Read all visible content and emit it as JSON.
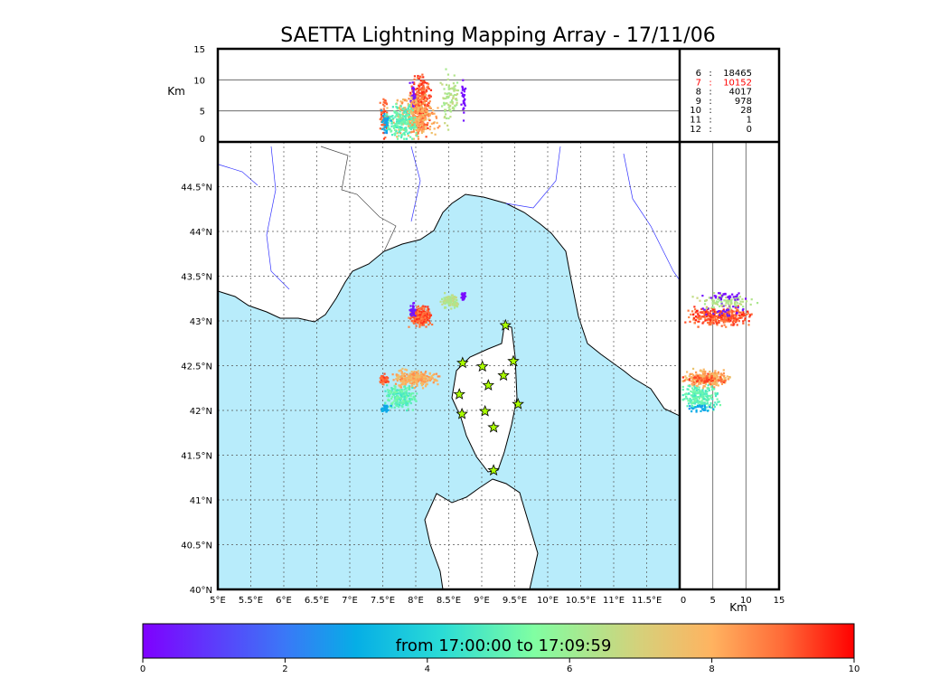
{
  "chart_data": {
    "type": "scatter",
    "title": "SAETTA Lightning Mapping Array - 17/11/06",
    "map": {
      "lon_range": [
        5,
        12
      ],
      "lat_range": [
        40,
        45
      ],
      "lon_ticks": [
        "5°E",
        "5.5°E",
        "6°E",
        "6.5°E",
        "7°E",
        "7.5°E",
        "8°E",
        "8.5°E",
        "9°E",
        "9.5°E",
        "10°E",
        "10.5°E",
        "11°E",
        "11.5°E"
      ],
      "lat_ticks": [
        "40°N",
        "40.5°N",
        "41°N",
        "41.5°N",
        "42°N",
        "42.5°N",
        "43°N",
        "43.5°N",
        "44°N",
        "44.5°N"
      ],
      "sea_color": "#b8ecfb",
      "land_color": "#ffffff"
    },
    "altitude_panel": {
      "ylabel": "Km",
      "yticks": [
        "0",
        "5",
        "10",
        "15"
      ],
      "range": [
        0,
        15
      ]
    },
    "side_panel": {
      "xlabel": "Km",
      "xticks": [
        "0",
        "5",
        "10",
        "15"
      ],
      "range": [
        0,
        15
      ]
    },
    "station_counts": [
      {
        "n": "6",
        "count": "18465",
        "highlight": false
      },
      {
        "n": "7",
        "count": "10152",
        "highlight": true
      },
      {
        "n": "8",
        "count": "4017",
        "highlight": false
      },
      {
        "n": "9",
        "count": "978",
        "highlight": false
      },
      {
        "n": "10",
        "count": "28",
        "highlight": false
      },
      {
        "n": "11",
        "count": "1",
        "highlight": false
      },
      {
        "n": "12",
        "count": "0",
        "highlight": false
      }
    ],
    "highlight_color": "#ff0000",
    "stations": [
      [
        9.36,
        42.95
      ],
      [
        8.71,
        42.53
      ],
      [
        9.01,
        42.49
      ],
      [
        9.48,
        42.55
      ],
      [
        9.1,
        42.28
      ],
      [
        9.33,
        42.39
      ],
      [
        8.66,
        42.18
      ],
      [
        9.55,
        42.07
      ],
      [
        9.05,
        41.99
      ],
      [
        8.7,
        41.96
      ],
      [
        9.18,
        41.81
      ],
      [
        9.18,
        41.33
      ]
    ],
    "station_color": "#aaff00",
    "clusters": [
      {
        "lon": 8.07,
        "lat": 43.05,
        "dlon": 0.14,
        "dlat": 0.09,
        "alt": 6,
        "dalt": 4,
        "t": [
          8.5,
          9.8
        ],
        "n": 320
      },
      {
        "lon": 7.95,
        "lat": 43.12,
        "dlon": 0.05,
        "dlat": 0.06,
        "alt": 7,
        "dalt": 3,
        "t": [
          0.1,
          0.6
        ],
        "n": 30
      },
      {
        "lon": 8.52,
        "lat": 43.22,
        "dlon": 0.12,
        "dlat": 0.07,
        "alt": 7,
        "dalt": 4,
        "t": [
          6.0,
          6.8
        ],
        "n": 90
      },
      {
        "lon": 8.72,
        "lat": 43.28,
        "dlon": 0.03,
        "dlat": 0.04,
        "alt": 7,
        "dalt": 3,
        "t": [
          0.1,
          0.4
        ],
        "n": 30
      },
      {
        "lon": 7.98,
        "lat": 42.36,
        "dlon": 0.32,
        "dlat": 0.08,
        "alt": 4,
        "dalt": 3,
        "t": [
          7.4,
          8.6
        ],
        "n": 300
      },
      {
        "lon": 7.52,
        "lat": 42.35,
        "dlon": 0.06,
        "dlat": 0.05,
        "alt": 4,
        "dalt": 3,
        "t": [
          8.8,
          9.6
        ],
        "n": 60
      },
      {
        "lon": 7.78,
        "lat": 42.15,
        "dlon": 0.22,
        "dlat": 0.12,
        "alt": 3,
        "dalt": 2.5,
        "t": [
          4.5,
          5.5
        ],
        "n": 200
      },
      {
        "lon": 7.55,
        "lat": 42.03,
        "dlon": 0.06,
        "dlat": 0.04,
        "alt": 3,
        "dalt": 2,
        "t": [
          2.5,
          3.2
        ],
        "n": 30
      }
    ],
    "colorbar": {
      "label": "from 17:00:00 to 17:09:59",
      "ticks": [
        "0",
        "2",
        "4",
        "6",
        "8",
        "10"
      ],
      "range": [
        0,
        10
      ]
    }
  }
}
